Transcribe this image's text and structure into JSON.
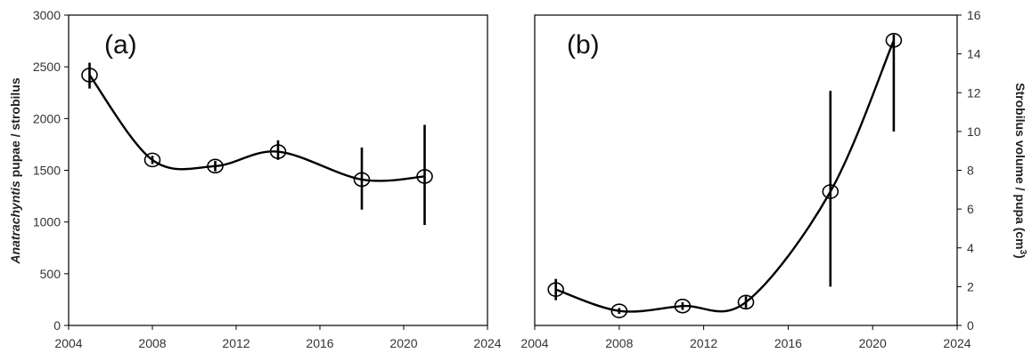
{
  "chart_data": [
    {
      "type": "line",
      "panel_label": "(a)",
      "ylabel_italic": "Anatrachyntis",
      "ylabel_rest": " pupae / strobilus",
      "xlim": [
        2004,
        2024
      ],
      "ylim": [
        0,
        3000
      ],
      "x_ticks": [
        2004,
        2008,
        2012,
        2016,
        2020,
        2024
      ],
      "y_ticks": [
        0,
        500,
        1000,
        1500,
        2000,
        2500,
        3000
      ],
      "y_axis_side": "left",
      "grid": false,
      "points": [
        {
          "x": 2005,
          "y": 2420,
          "err_low": 2290,
          "err_high": 2540
        },
        {
          "x": 2008,
          "y": 1600,
          "err_low": 1560,
          "err_high": 1640
        },
        {
          "x": 2011,
          "y": 1540,
          "err_low": 1490,
          "err_high": 1590
        },
        {
          "x": 2014,
          "y": 1680,
          "err_low": 1600,
          "err_high": 1790
        },
        {
          "x": 2018,
          "y": 1410,
          "err_low": 1120,
          "err_high": 1720
        },
        {
          "x": 2021,
          "y": 1440,
          "err_low": 970,
          "err_high": 1940
        }
      ]
    },
    {
      "type": "line",
      "panel_label": "(b)",
      "ylabel_main": "Strobilus volume / pupa (cm",
      "ylabel_sup": "3",
      "ylabel_end": ")",
      "xlim": [
        2004,
        2024
      ],
      "ylim": [
        0,
        16
      ],
      "x_ticks": [
        2004,
        2008,
        2012,
        2016,
        2020,
        2024
      ],
      "y_ticks": [
        0,
        2,
        4,
        6,
        8,
        10,
        12,
        14,
        16
      ],
      "y_axis_side": "right",
      "grid": false,
      "points": [
        {
          "x": 2005,
          "y": 1.85,
          "err_low": 1.3,
          "err_high": 2.4
        },
        {
          "x": 2008,
          "y": 0.75,
          "err_low": 0.6,
          "err_high": 0.9
        },
        {
          "x": 2011,
          "y": 1.0,
          "err_low": 0.8,
          "err_high": 1.2
        },
        {
          "x": 2014,
          "y": 1.2,
          "err_low": 0.9,
          "err_high": 1.5
        },
        {
          "x": 2018,
          "y": 6.9,
          "err_low": 2.0,
          "err_high": 12.1
        },
        {
          "x": 2021,
          "y": 14.7,
          "err_low": 10.0,
          "err_high": 15.0
        }
      ]
    }
  ]
}
